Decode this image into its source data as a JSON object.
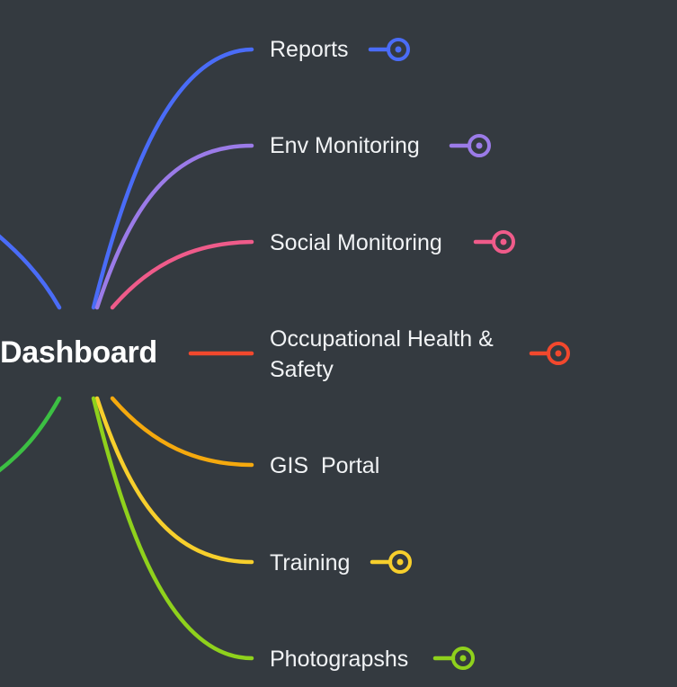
{
  "central_topic": "Dashboard",
  "branches": [
    {
      "label": "Reports",
      "color": "#4a6cf7",
      "has_toggle": true
    },
    {
      "label": "Env Monitoring",
      "color": "#9b7be8",
      "has_toggle": true
    },
    {
      "label": "Social Monitoring",
      "color": "#ef5b8a",
      "has_toggle": true
    },
    {
      "label": "Occupational Health &\nSafety",
      "color": "#f2482d",
      "has_toggle": true
    },
    {
      "label": "GIS  Portal",
      "color": "#f5a90e",
      "has_toggle": false
    },
    {
      "label": "Training",
      "color": "#f7cf2c",
      "has_toggle": true
    },
    {
      "label": "Photograpshs",
      "color": "#8fd11c",
      "has_toggle": true
    }
  ],
  "offscreen_branches": [
    {
      "color": "#4a6cf7"
    },
    {
      "color": "#3cc043"
    }
  ]
}
